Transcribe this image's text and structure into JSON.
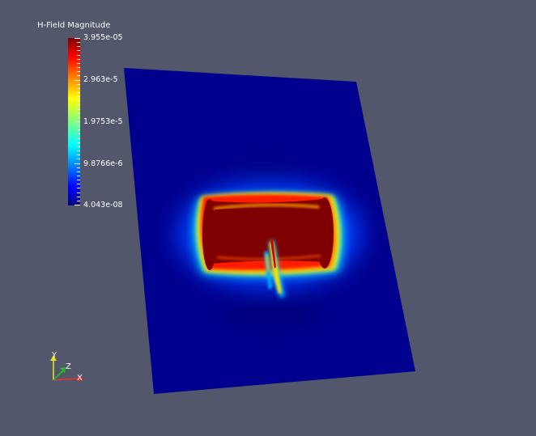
{
  "legend": {
    "title": "H-Field Magnitude",
    "max_label": "3.955e-05",
    "tick_2": "2.963e-5",
    "tick_3": "1.9753e-5",
    "tick_4": "9.8766e-6",
    "min_label": "4.043e-08"
  },
  "axes": {
    "x_label": "X",
    "y_label": "Y",
    "z_label": "Z"
  },
  "colors": {
    "background": "#52576b",
    "plane": "#00008f",
    "hot": "#7f0000",
    "text": "#ffffff"
  }
}
